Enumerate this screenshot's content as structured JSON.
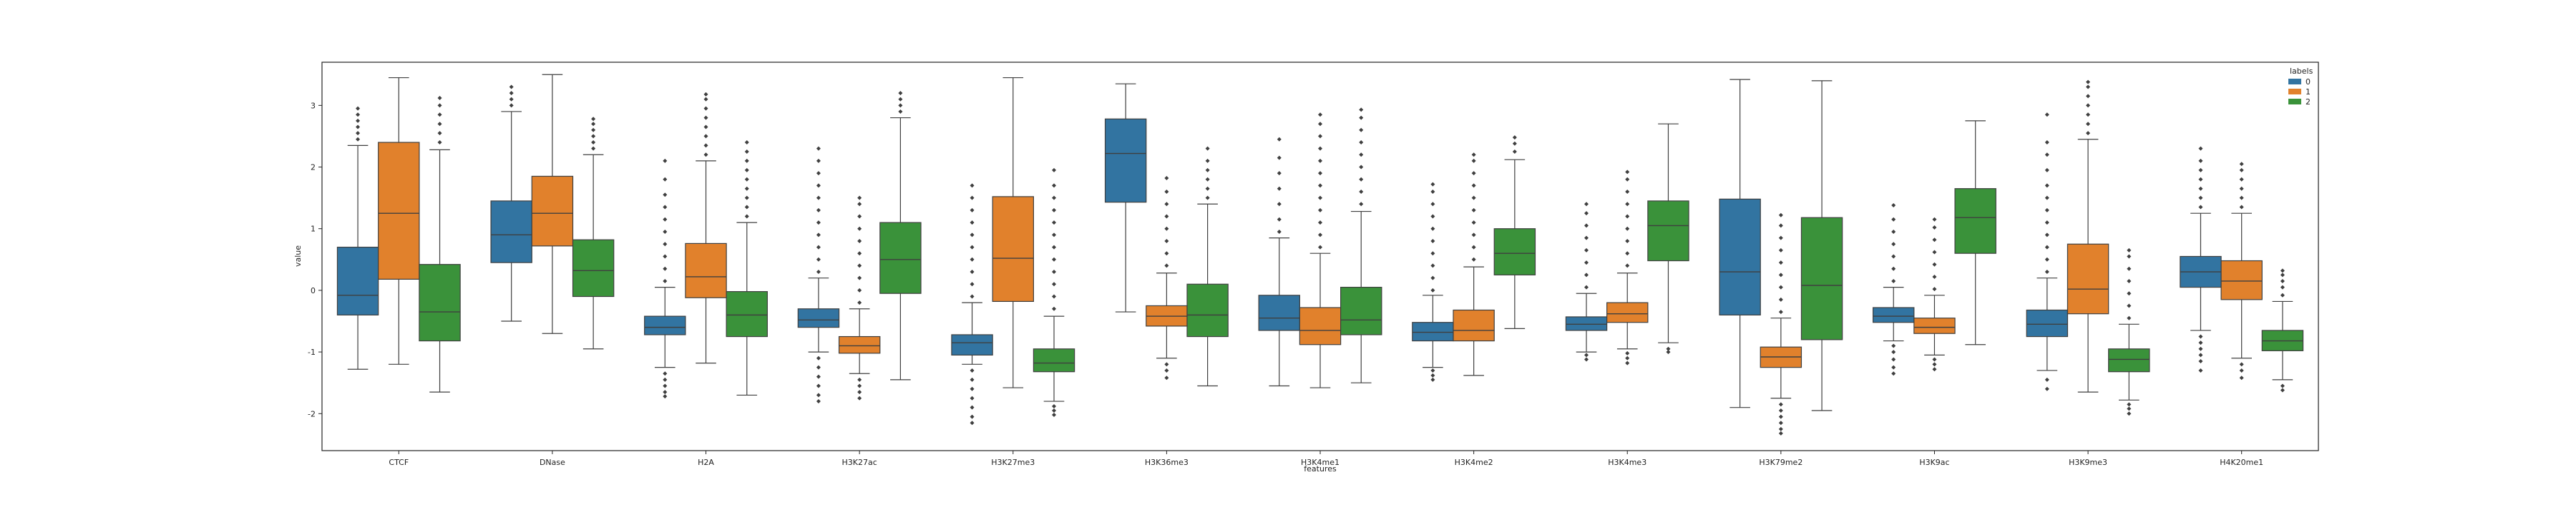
{
  "chart_data": {
    "type": "box",
    "title": "",
    "xlabel": "features",
    "ylabel": "value",
    "ylim": [
      -2.6,
      3.7
    ],
    "yticks": [
      -2,
      -1,
      0,
      1,
      2,
      3
    ],
    "grid": false,
    "legend": {
      "title": "labels",
      "placement": "top-right",
      "entries": [
        "0",
        "1",
        "2"
      ]
    },
    "categories": [
      "CTCF",
      "DNase",
      "H2A",
      "H3K27ac",
      "H3K27me3",
      "H3K36me3",
      "H3K4me1",
      "H3K4me2",
      "H3K4me3",
      "H3K79me2",
      "H3K9ac",
      "H3K9me3",
      "H4K20me1"
    ],
    "series": [
      {
        "name": "0",
        "color": "#3274a1",
        "boxes": [
          {
            "whislo": -1.28,
            "q1": -0.4,
            "med": -0.08,
            "q3": 0.7,
            "whishi": 2.35,
            "fliers_low": [],
            "fliers_high": [
              2.45,
              2.55,
              2.65,
              2.75,
              2.85,
              2.95
            ]
          },
          {
            "whislo": -0.5,
            "q1": 0.45,
            "med": 0.9,
            "q3": 1.45,
            "whishi": 2.9,
            "fliers_low": [],
            "fliers_high": [
              3.0,
              3.1,
              3.2,
              3.3
            ]
          },
          {
            "whislo": -1.25,
            "q1": -0.72,
            "med": -0.6,
            "q3": -0.42,
            "whishi": 0.05,
            "fliers_low": [
              -1.35,
              -1.45,
              -1.55,
              -1.65,
              -1.72
            ],
            "fliers_high": [
              0.15,
              0.35,
              0.55,
              0.75,
              0.95,
              1.15,
              1.35,
              1.55,
              1.8,
              2.1
            ]
          },
          {
            "whislo": -1.0,
            "q1": -0.6,
            "med": -0.48,
            "q3": -0.3,
            "whishi": 0.2,
            "fliers_low": [
              -1.1,
              -1.25,
              -1.4,
              -1.55,
              -1.7,
              -1.8
            ],
            "fliers_high": [
              0.3,
              0.5,
              0.7,
              0.9,
              1.1,
              1.3,
              1.5,
              1.7,
              1.9,
              2.1,
              2.3
            ]
          },
          {
            "whislo": -1.2,
            "q1": -1.05,
            "med": -0.85,
            "q3": -0.72,
            "whishi": -0.2,
            "fliers_low": [
              -1.3,
              -1.45,
              -1.6,
              -1.75,
              -1.9,
              -2.05,
              -2.15
            ],
            "fliers_high": [
              -0.1,
              0.1,
              0.3,
              0.5,
              0.7,
              0.9,
              1.1,
              1.3,
              1.5,
              1.7
            ]
          },
          {
            "whislo": -0.35,
            "q1": 1.43,
            "med": 2.22,
            "q3": 2.78,
            "whishi": 3.35,
            "fliers_low": [],
            "fliers_high": []
          },
          {
            "whislo": -1.55,
            "q1": -0.65,
            "med": -0.45,
            "q3": -0.08,
            "whishi": 0.85,
            "fliers_low": [],
            "fliers_high": [
              0.95,
              1.15,
              1.4,
              1.65,
              1.9,
              2.15,
              2.45
            ]
          },
          {
            "whislo": -1.25,
            "q1": -0.82,
            "med": -0.68,
            "q3": -0.52,
            "whishi": -0.08,
            "fliers_low": [
              -1.3,
              -1.38,
              -1.45
            ],
            "fliers_high": [
              0.0,
              0.2,
              0.4,
              0.6,
              0.8,
              1.0,
              1.2,
              1.4,
              1.6,
              1.72
            ]
          },
          {
            "whislo": -1.0,
            "q1": -0.65,
            "med": -0.55,
            "q3": -0.43,
            "whishi": -0.05,
            "fliers_low": [
              -1.05,
              -1.12
            ],
            "fliers_high": [
              0.05,
              0.25,
              0.45,
              0.65,
              0.85,
              1.05,
              1.25,
              1.4
            ]
          },
          {
            "whislo": -1.9,
            "q1": -0.4,
            "med": 0.3,
            "q3": 1.48,
            "whishi": 3.42,
            "fliers_low": [],
            "fliers_high": []
          },
          {
            "whislo": -0.82,
            "q1": -0.52,
            "med": -0.42,
            "q3": -0.28,
            "whishi": 0.05,
            "fliers_low": [
              -0.9,
              -1.0,
              -1.12,
              -1.25,
              -1.35
            ],
            "fliers_high": [
              0.15,
              0.35,
              0.55,
              0.75,
              0.95,
              1.15,
              1.38
            ]
          },
          {
            "whislo": -1.3,
            "q1": -0.75,
            "med": -0.55,
            "q3": -0.32,
            "whishi": 0.2,
            "fliers_low": [
              -1.45,
              -1.6
            ],
            "fliers_high": [
              0.3,
              0.5,
              0.7,
              0.9,
              1.1,
              1.3,
              1.5,
              1.7,
              1.95,
              2.2,
              2.4,
              2.85
            ]
          },
          {
            "whislo": -0.65,
            "q1": 0.05,
            "med": 0.3,
            "q3": 0.55,
            "whishi": 1.25,
            "fliers_low": [
              -0.75,
              -0.85,
              -0.95,
              -1.05,
              -1.15,
              -1.3
            ],
            "fliers_high": [
              1.35,
              1.5,
              1.65,
              1.8,
              1.95,
              2.1,
              2.3
            ]
          }
        ]
      },
      {
        "name": "1",
        "color": "#e1812c",
        "boxes": [
          {
            "whislo": -1.2,
            "q1": 0.18,
            "med": 1.25,
            "q3": 2.4,
            "whishi": 3.45,
            "fliers_low": [],
            "fliers_high": []
          },
          {
            "whislo": -0.7,
            "q1": 0.72,
            "med": 1.25,
            "q3": 1.85,
            "whishi": 3.5,
            "fliers_low": [],
            "fliers_high": []
          },
          {
            "whislo": -1.18,
            "q1": -0.12,
            "med": 0.22,
            "q3": 0.76,
            "whishi": 2.1,
            "fliers_low": [],
            "fliers_high": [
              2.2,
              2.35,
              2.5,
              2.65,
              2.8,
              2.95,
              3.1,
              3.18
            ]
          },
          {
            "whislo": -1.35,
            "q1": -1.02,
            "med": -0.9,
            "q3": -0.75,
            "whishi": -0.3,
            "fliers_low": [
              -1.45,
              -1.55,
              -1.65,
              -1.75
            ],
            "fliers_high": [
              -0.2,
              0.0,
              0.2,
              0.4,
              0.6,
              0.8,
              1.0,
              1.2,
              1.4,
              1.5
            ]
          },
          {
            "whislo": -1.58,
            "q1": -0.18,
            "med": 0.52,
            "q3": 1.52,
            "whishi": 3.45,
            "fliers_low": [],
            "fliers_high": []
          },
          {
            "whislo": -1.1,
            "q1": -0.58,
            "med": -0.42,
            "q3": -0.25,
            "whishi": 0.28,
            "fliers_low": [
              -1.2,
              -1.3,
              -1.42
            ],
            "fliers_high": [
              0.4,
              0.6,
              0.8,
              1.0,
              1.2,
              1.4,
              1.6,
              1.82
            ]
          },
          {
            "whislo": -1.58,
            "q1": -0.88,
            "med": -0.65,
            "q3": -0.28,
            "whishi": 0.6,
            "fliers_low": [],
            "fliers_high": [
              0.7,
              0.9,
              1.1,
              1.3,
              1.5,
              1.7,
              1.9,
              2.1,
              2.3,
              2.5,
              2.7,
              2.85
            ]
          },
          {
            "whislo": -1.38,
            "q1": -0.82,
            "med": -0.65,
            "q3": -0.32,
            "whishi": 0.38,
            "fliers_low": [],
            "fliers_high": [
              0.5,
              0.7,
              0.9,
              1.1,
              1.3,
              1.5,
              1.7,
              1.9,
              2.1,
              2.2
            ]
          },
          {
            "whislo": -0.95,
            "q1": -0.52,
            "med": -0.38,
            "q3": -0.2,
            "whishi": 0.28,
            "fliers_low": [
              -1.02,
              -1.1,
              -1.18
            ],
            "fliers_high": [
              0.4,
              0.6,
              0.8,
              1.0,
              1.2,
              1.4,
              1.6,
              1.8,
              1.92
            ]
          },
          {
            "whislo": -1.75,
            "q1": -1.25,
            "med": -1.08,
            "q3": -0.92,
            "whishi": -0.45,
            "fliers_low": [
              -1.85,
              -1.95,
              -2.05,
              -2.15,
              -2.25,
              -2.32
            ],
            "fliers_high": [
              -0.35,
              -0.15,
              0.05,
              0.25,
              0.45,
              0.65,
              0.85,
              1.05,
              1.22
            ]
          },
          {
            "whislo": -1.05,
            "q1": -0.7,
            "med": -0.6,
            "q3": -0.45,
            "whishi": -0.08,
            "fliers_low": [
              -1.12,
              -1.2,
              -1.28
            ],
            "fliers_high": [
              0.02,
              0.22,
              0.42,
              0.62,
              0.82,
              1.02,
              1.15
            ]
          },
          {
            "whislo": -1.65,
            "q1": -0.38,
            "med": 0.02,
            "q3": 0.75,
            "whishi": 2.45,
            "fliers_low": [],
            "fliers_high": [
              2.55,
              2.7,
              2.85,
              3.0,
              3.15,
              3.3,
              3.38
            ]
          },
          {
            "whislo": -1.1,
            "q1": -0.15,
            "med": 0.15,
            "q3": 0.48,
            "whishi": 1.25,
            "fliers_low": [
              -1.2,
              -1.3,
              -1.42
            ],
            "fliers_high": [
              1.35,
              1.5,
              1.65,
              1.8,
              1.95,
              2.05
            ]
          }
        ]
      },
      {
        "name": "2",
        "color": "#3a923a",
        "boxes": [
          {
            "whislo": -1.65,
            "q1": -0.82,
            "med": -0.35,
            "q3": 0.42,
            "whishi": 2.28,
            "fliers_low": [],
            "fliers_high": [
              2.4,
              2.55,
              2.7,
              2.85,
              3.0,
              3.12
            ]
          },
          {
            "whislo": -0.95,
            "q1": -0.1,
            "med": 0.32,
            "q3": 0.82,
            "whishi": 2.2,
            "fliers_low": [],
            "fliers_high": [
              2.3,
              2.4,
              2.5,
              2.6,
              2.7,
              2.78
            ]
          },
          {
            "whislo": -1.7,
            "q1": -0.75,
            "med": -0.4,
            "q3": -0.02,
            "whishi": 1.1,
            "fliers_low": [],
            "fliers_high": [
              1.2,
              1.35,
              1.5,
              1.65,
              1.8,
              1.95,
              2.1,
              2.25,
              2.4
            ]
          },
          {
            "whislo": -1.45,
            "q1": -0.05,
            "med": 0.5,
            "q3": 1.1,
            "whishi": 2.8,
            "fliers_low": [],
            "fliers_high": [
              2.9,
              3.0,
              3.1,
              3.2
            ]
          },
          {
            "whislo": -1.8,
            "q1": -1.32,
            "med": -1.18,
            "q3": -0.95,
            "whishi": -0.42,
            "fliers_low": [
              -1.88,
              -1.95,
              -2.02
            ],
            "fliers_high": [
              -0.3,
              -0.1,
              0.1,
              0.3,
              0.5,
              0.7,
              0.9,
              1.1,
              1.3,
              1.5,
              1.7,
              1.95
            ]
          },
          {
            "whislo": -1.55,
            "q1": -0.75,
            "med": -0.4,
            "q3": 0.1,
            "whishi": 1.4,
            "fliers_low": [],
            "fliers_high": [
              1.5,
              1.65,
              1.8,
              1.95,
              2.1,
              2.3
            ]
          },
          {
            "whislo": -1.5,
            "q1": -0.72,
            "med": -0.48,
            "q3": 0.05,
            "whishi": 1.28,
            "fliers_low": [],
            "fliers_high": [
              1.4,
              1.6,
              1.8,
              2.0,
              2.2,
              2.4,
              2.6,
              2.8,
              2.93
            ]
          },
          {
            "whislo": -0.62,
            "q1": 0.25,
            "med": 0.6,
            "q3": 1.0,
            "whishi": 2.12,
            "fliers_low": [],
            "fliers_high": [
              2.25,
              2.38,
              2.48
            ]
          },
          {
            "whislo": -0.85,
            "q1": 0.48,
            "med": 1.05,
            "q3": 1.45,
            "whishi": 2.7,
            "fliers_low": [
              -0.95,
              -1.0
            ],
            "fliers_high": []
          },
          {
            "whislo": -1.95,
            "q1": -0.8,
            "med": 0.08,
            "q3": 1.18,
            "whishi": 3.4,
            "fliers_low": [],
            "fliers_high": []
          },
          {
            "whislo": -0.88,
            "q1": 0.6,
            "med": 1.18,
            "q3": 1.65,
            "whishi": 2.75,
            "fliers_low": [],
            "fliers_high": []
          },
          {
            "whislo": -1.78,
            "q1": -1.32,
            "med": -1.12,
            "q3": -0.95,
            "whishi": -0.55,
            "fliers_low": [
              -1.85,
              -1.92,
              -2.0
            ],
            "fliers_high": [
              -0.45,
              -0.25,
              -0.05,
              0.15,
              0.35,
              0.55,
              0.65
            ]
          },
          {
            "whislo": -1.45,
            "q1": -0.98,
            "med": -0.82,
            "q3": -0.65,
            "whishi": -0.18,
            "fliers_low": [
              -1.55,
              -1.62
            ],
            "fliers_high": [
              -0.08,
              0.05,
              0.15,
              0.25,
              0.32
            ]
          }
        ]
      }
    ]
  }
}
